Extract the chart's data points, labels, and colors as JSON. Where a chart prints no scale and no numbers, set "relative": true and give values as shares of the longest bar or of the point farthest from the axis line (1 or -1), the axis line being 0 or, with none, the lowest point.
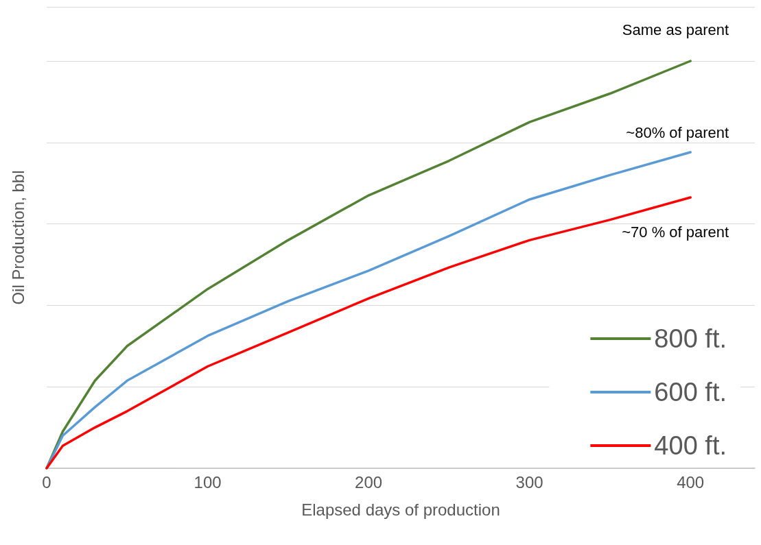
{
  "chart_data": {
    "type": "line",
    "relative": true,
    "xlabel": "Elapsed days of production",
    "ylabel": "Oil Production, bbl",
    "x": [
      0,
      10,
      30,
      50,
      100,
      150,
      200,
      250,
      300,
      350,
      400
    ],
    "xlim": [
      0,
      440
    ],
    "xticks": [
      0,
      100,
      200,
      300,
      400
    ],
    "series": [
      {
        "name": "800 ft.",
        "color": "#548235",
        "values": [
          0,
          0.09,
          0.215,
          0.3,
          0.44,
          0.56,
          0.67,
          0.755,
          0.85,
          0.92,
          1
        ]
      },
      {
        "name": "600 ft.",
        "color": "#5b9bd5",
        "values": [
          0,
          0.08,
          0.15,
          0.215,
          0.325,
          0.41,
          0.485,
          0.57,
          0.66,
          0.72,
          0.776
        ]
      },
      {
        "name": "400 ft.",
        "color": "#ff0000",
        "values": [
          0,
          0.055,
          0.1,
          0.14,
          0.25,
          0.333,
          0.417,
          0.493,
          0.56,
          0.61,
          0.665
        ]
      }
    ],
    "annotations": [
      "Same as parent",
      "~80% of parent",
      "~70 % of parent"
    ],
    "grid": "y",
    "legend": "bottom right",
    "marker": "none",
    "line_style": "solid"
  }
}
